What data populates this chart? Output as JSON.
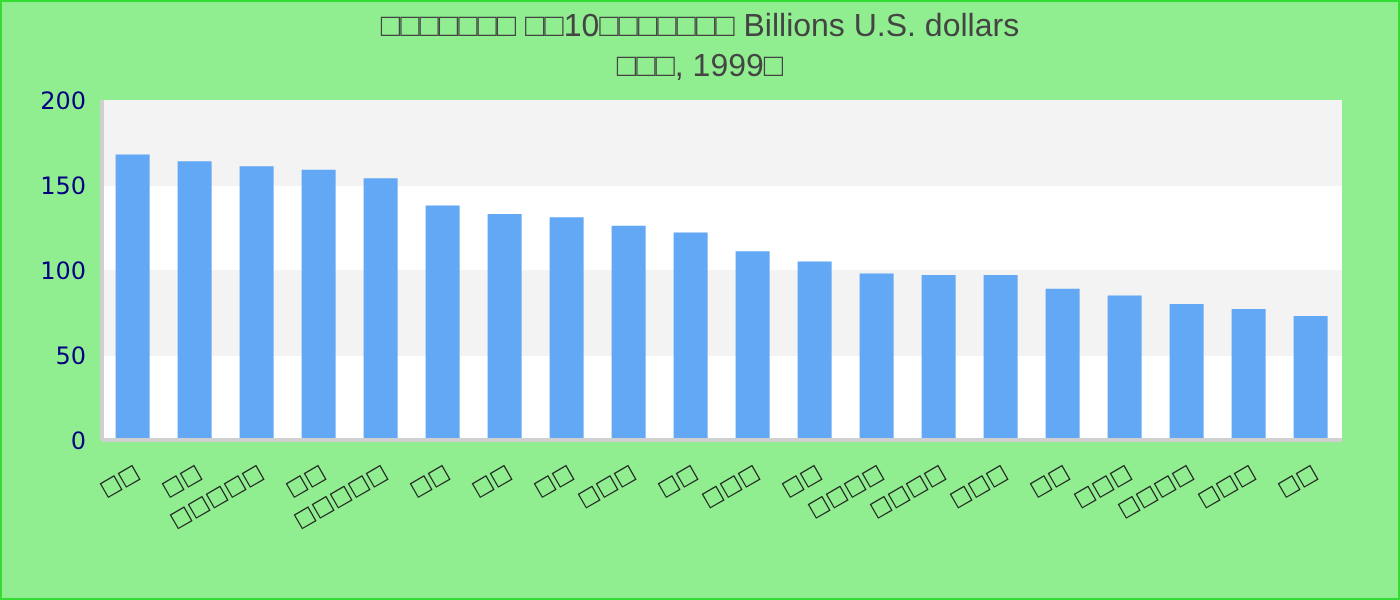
{
  "chart_data": {
    "type": "bar",
    "title": "□□□□□□□ □□10□□□□□□□ Billions U.S. dollars\n□□□, 1999□",
    "categories": [
      "□□",
      "□□",
      "□□□□□",
      "□□",
      "□□□□□",
      "□□",
      "□□",
      "□□",
      "□□□",
      "□□",
      "□□□",
      "□□",
      "□□□□",
      "□□□□",
      "□□□",
      "□□",
      "□□□",
      "□□□□",
      "□□□",
      "□□"
    ],
    "values": [
      168,
      164,
      161,
      159,
      154,
      138,
      133,
      131,
      126,
      122,
      111,
      105,
      98,
      97,
      97,
      89,
      85,
      80,
      77,
      73
    ],
    "color": "#62a8f4",
    "ylim": [
      0,
      200
    ],
    "yticks": [
      0,
      50,
      100,
      150,
      200
    ]
  }
}
